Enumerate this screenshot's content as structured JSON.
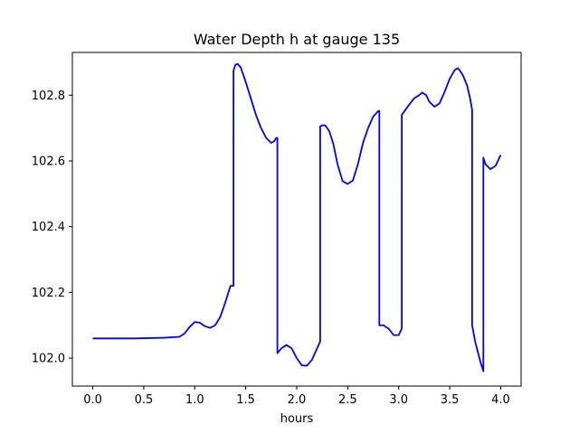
{
  "chart_data": {
    "type": "line",
    "title": "Water Depth h at gauge 135",
    "xlabel": "hours",
    "ylabel": "",
    "xlim": [
      -0.2,
      4.2
    ],
    "ylim": [
      101.915,
      102.93
    ],
    "xticks": [
      0.0,
      0.5,
      1.0,
      1.5,
      2.0,
      2.5,
      3.0,
      3.5,
      4.0
    ],
    "xtick_labels": [
      "0.0",
      "0.5",
      "1.0",
      "1.5",
      "2.0",
      "2.5",
      "3.0",
      "3.5",
      "4.0"
    ],
    "yticks": [
      102.0,
      102.2,
      102.4,
      102.6,
      102.8
    ],
    "ytick_labels": [
      "102.0",
      "102.2",
      "102.4",
      "102.6",
      "102.8"
    ],
    "grid": false,
    "series": [
      {
        "color": "#0000ff",
        "x": [
          0.0,
          0.4,
          0.7,
          0.85,
          0.9,
          0.95,
          1.0,
          1.05,
          1.1,
          1.15,
          1.2,
          1.25,
          1.3,
          1.35,
          1.38,
          1.38,
          1.4,
          1.42,
          1.45,
          1.5,
          1.55,
          1.6,
          1.65,
          1.7,
          1.75,
          1.78,
          1.8,
          1.81,
          1.81,
          1.85,
          1.9,
          1.95,
          2.0,
          2.05,
          2.1,
          2.15,
          2.2,
          2.23,
          2.23,
          2.25,
          2.28,
          2.32,
          2.36,
          2.4,
          2.45,
          2.5,
          2.55,
          2.6,
          2.65,
          2.7,
          2.75,
          2.8,
          2.81,
          2.81,
          2.85,
          2.9,
          2.95,
          3.0,
          3.03,
          3.03,
          3.1,
          3.15,
          3.2,
          3.23,
          3.27,
          3.3,
          3.35,
          3.4,
          3.45,
          3.5,
          3.55,
          3.58,
          3.6,
          3.63,
          3.67,
          3.7,
          3.72,
          3.72,
          3.75,
          3.8,
          3.83,
          3.83,
          3.85,
          3.9,
          3.95,
          4.0
        ],
        "y": [
          102.06,
          102.06,
          102.062,
          102.065,
          102.075,
          102.095,
          102.11,
          102.108,
          102.097,
          102.092,
          102.1,
          102.125,
          102.17,
          102.22,
          102.22,
          102.875,
          102.893,
          102.895,
          102.885,
          102.84,
          102.79,
          102.74,
          102.7,
          102.67,
          102.655,
          102.66,
          102.67,
          102.67,
          102.015,
          102.03,
          102.04,
          102.03,
          102.0,
          101.978,
          101.977,
          101.995,
          102.03,
          102.05,
          102.705,
          102.708,
          102.708,
          102.69,
          102.65,
          102.59,
          102.538,
          102.53,
          102.54,
          102.59,
          102.655,
          102.7,
          102.735,
          102.752,
          102.752,
          102.1,
          102.1,
          102.09,
          102.07,
          102.07,
          102.09,
          102.74,
          102.77,
          102.79,
          102.8,
          102.808,
          102.8,
          102.78,
          102.765,
          102.775,
          102.81,
          102.85,
          102.877,
          102.882,
          102.875,
          102.86,
          102.83,
          102.79,
          102.755,
          102.1,
          102.05,
          101.99,
          101.96,
          102.61,
          102.59,
          102.575,
          102.585,
          102.618
        ]
      }
    ]
  }
}
